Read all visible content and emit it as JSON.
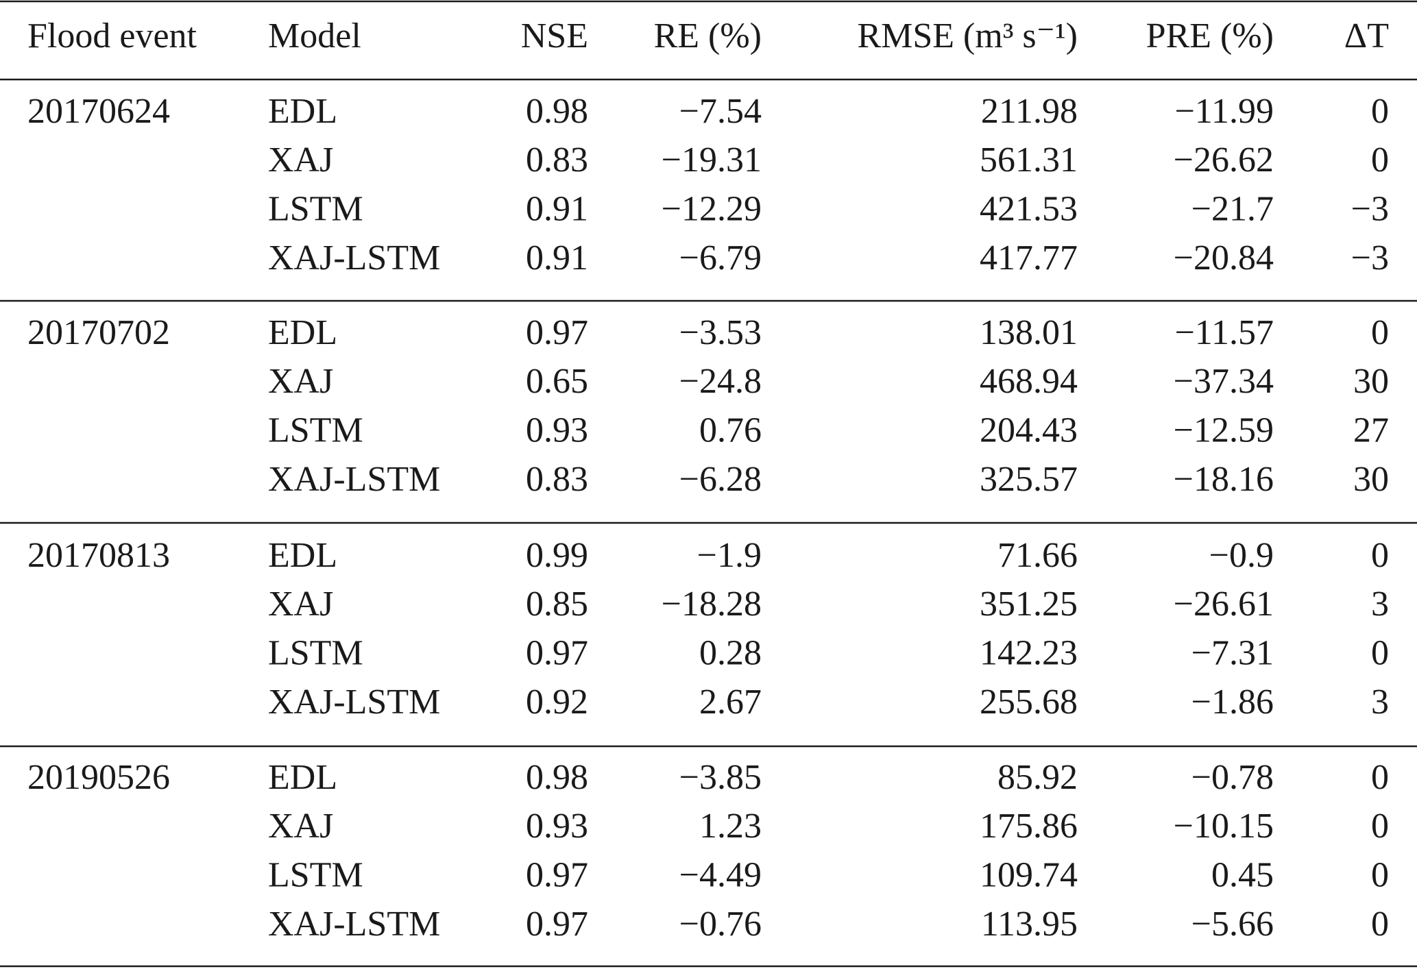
{
  "table": {
    "header": [
      "Flood event",
      "Model",
      "NSE",
      "RE (%)",
      "RMSE (m³ s⁻¹)",
      "PRE (%)",
      "ΔT"
    ],
    "groups": [
      {
        "event": "20170624",
        "rows": [
          [
            "EDL",
            "0.98",
            "−7.54",
            "211.98",
            "−11.99",
            "0"
          ],
          [
            "XAJ",
            "0.83",
            "−19.31",
            "561.31",
            "−26.62",
            "0"
          ],
          [
            "LSTM",
            "0.91",
            "−12.29",
            "421.53",
            "−21.7",
            "−3"
          ],
          [
            "XAJ-LSTM",
            "0.91",
            "−6.79",
            "417.77",
            "−20.84",
            "−3"
          ]
        ]
      },
      {
        "event": "20170702",
        "rows": [
          [
            "EDL",
            "0.97",
            "−3.53",
            "138.01",
            "−11.57",
            "0"
          ],
          [
            "XAJ",
            "0.65",
            "−24.8",
            "468.94",
            "−37.34",
            "30"
          ],
          [
            "LSTM",
            "0.93",
            "0.76",
            "204.43",
            "−12.59",
            "27"
          ],
          [
            "XAJ-LSTM",
            "0.83",
            "−6.28",
            "325.57",
            "−18.16",
            "30"
          ]
        ]
      },
      {
        "event": "20170813",
        "rows": [
          [
            "EDL",
            "0.99",
            "−1.9",
            "71.66",
            "−0.9",
            "0"
          ],
          [
            "XAJ",
            "0.85",
            "−18.28",
            "351.25",
            "−26.61",
            "3"
          ],
          [
            "LSTM",
            "0.97",
            "0.28",
            "142.23",
            "−7.31",
            "0"
          ],
          [
            "XAJ-LSTM",
            "0.92",
            "2.67",
            "255.68",
            "−1.86",
            "3"
          ]
        ]
      },
      {
        "event": "20190526",
        "rows": [
          [
            "EDL",
            "0.98",
            "−3.85",
            "85.92",
            "−0.78",
            "0"
          ],
          [
            "XAJ",
            "0.93",
            "1.23",
            "175.86",
            "−10.15",
            "0"
          ],
          [
            "LSTM",
            "0.97",
            "−4.49",
            "109.74",
            "0.45",
            "0"
          ],
          [
            "XAJ-LSTM",
            "0.97",
            "−0.76",
            "113.95",
            "−5.66",
            "0"
          ]
        ]
      }
    ]
  }
}
